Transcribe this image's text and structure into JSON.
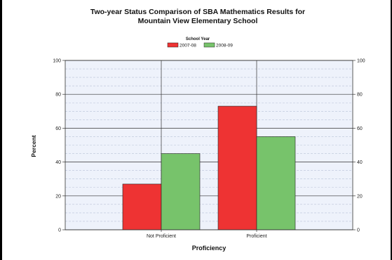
{
  "chart_data": {
    "type": "bar",
    "title": [
      "Two-year Status Comparison of SBA Mathematics Results for",
      "Mountain View Elementary School"
    ],
    "legend_title": "School Year",
    "legend_position": "top-center",
    "categories": [
      "Not Proficient",
      "Proficient"
    ],
    "series": [
      {
        "name": "2007-08",
        "values": [
          27,
          73
        ],
        "color": "#ee3333"
      },
      {
        "name": "2008-09",
        "values": [
          45,
          55
        ],
        "color": "#77c36b"
      }
    ],
    "xlabel": "Proficiency",
    "ylabel": "Percent",
    "ylim": [
      0,
      100
    ],
    "yticks": [
      0,
      20,
      40,
      60,
      80,
      100
    ],
    "grid": true,
    "plot_background": "#eef2fb",
    "grid_color": "#b9c3d8"
  }
}
